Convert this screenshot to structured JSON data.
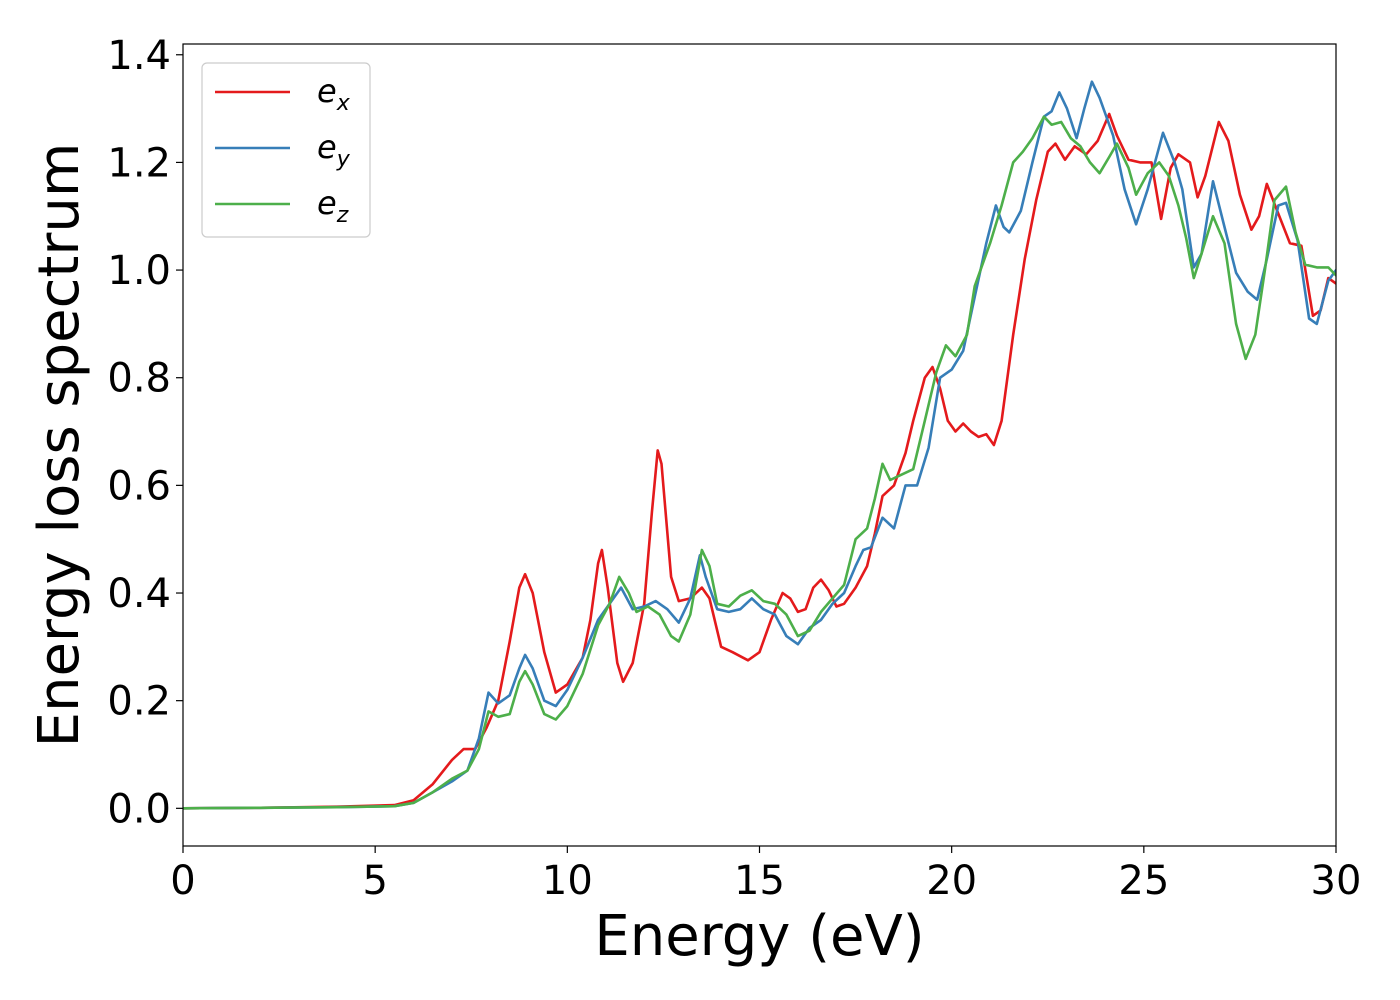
{
  "chart_data": {
    "type": "line",
    "title": "",
    "xlabel": "Energy (eV)",
    "ylabel": "Energy loss spectrum",
    "xlim": [
      0,
      30
    ],
    "ylim": [
      -0.07,
      1.42
    ],
    "xticks": [
      0,
      5,
      10,
      15,
      20,
      25,
      30
    ],
    "xtick_labels": [
      "0",
      "5",
      "10",
      "15",
      "20",
      "25",
      "30"
    ],
    "yticks": [
      0.0,
      0.2,
      0.4,
      0.6,
      0.8,
      1.0,
      1.2,
      1.4
    ],
    "ytick_labels": [
      "0.0",
      "0.2",
      "0.4",
      "0.6",
      "0.8",
      "1.0",
      "1.2",
      "1.4"
    ],
    "grid": false,
    "legend_position": "top-left",
    "series": [
      {
        "name": "e_x",
        "label_base": "e",
        "label_sub": "x",
        "color": "#e41a1c",
        "points": [
          [
            0,
            0.0
          ],
          [
            2,
            0.001
          ],
          [
            4,
            0.003
          ],
          [
            5.5,
            0.006
          ],
          [
            6.0,
            0.015
          ],
          [
            6.5,
            0.045
          ],
          [
            7.0,
            0.09
          ],
          [
            7.3,
            0.11
          ],
          [
            7.6,
            0.11
          ],
          [
            7.9,
            0.15
          ],
          [
            8.2,
            0.2
          ],
          [
            8.5,
            0.31
          ],
          [
            8.75,
            0.41
          ],
          [
            8.9,
            0.435
          ],
          [
            9.1,
            0.4
          ],
          [
            9.4,
            0.29
          ],
          [
            9.7,
            0.215
          ],
          [
            10.0,
            0.23
          ],
          [
            10.4,
            0.28
          ],
          [
            10.6,
            0.35
          ],
          [
            10.8,
            0.455
          ],
          [
            10.9,
            0.48
          ],
          [
            11.05,
            0.41
          ],
          [
            11.3,
            0.27
          ],
          [
            11.45,
            0.235
          ],
          [
            11.7,
            0.27
          ],
          [
            12.0,
            0.38
          ],
          [
            12.2,
            0.55
          ],
          [
            12.35,
            0.665
          ],
          [
            12.45,
            0.64
          ],
          [
            12.7,
            0.43
          ],
          [
            12.9,
            0.385
          ],
          [
            13.2,
            0.39
          ],
          [
            13.5,
            0.41
          ],
          [
            13.7,
            0.39
          ],
          [
            14.0,
            0.3
          ],
          [
            14.3,
            0.29
          ],
          [
            14.7,
            0.275
          ],
          [
            15.0,
            0.29
          ],
          [
            15.3,
            0.35
          ],
          [
            15.6,
            0.4
          ],
          [
            15.8,
            0.39
          ],
          [
            16.0,
            0.365
          ],
          [
            16.2,
            0.37
          ],
          [
            16.4,
            0.41
          ],
          [
            16.6,
            0.425
          ],
          [
            16.8,
            0.405
          ],
          [
            17.0,
            0.375
          ],
          [
            17.2,
            0.38
          ],
          [
            17.5,
            0.41
          ],
          [
            17.8,
            0.45
          ],
          [
            18.0,
            0.51
          ],
          [
            18.2,
            0.58
          ],
          [
            18.5,
            0.6
          ],
          [
            18.8,
            0.66
          ],
          [
            19.0,
            0.72
          ],
          [
            19.3,
            0.8
          ],
          [
            19.5,
            0.82
          ],
          [
            19.7,
            0.78
          ],
          [
            19.9,
            0.72
          ],
          [
            20.1,
            0.7
          ],
          [
            20.3,
            0.715
          ],
          [
            20.5,
            0.7
          ],
          [
            20.7,
            0.69
          ],
          [
            20.9,
            0.695
          ],
          [
            21.1,
            0.675
          ],
          [
            21.3,
            0.72
          ],
          [
            21.6,
            0.88
          ],
          [
            21.9,
            1.02
          ],
          [
            22.2,
            1.13
          ],
          [
            22.5,
            1.22
          ],
          [
            22.7,
            1.235
          ],
          [
            22.95,
            1.205
          ],
          [
            23.2,
            1.23
          ],
          [
            23.5,
            1.215
          ],
          [
            23.8,
            1.24
          ],
          [
            24.1,
            1.29
          ],
          [
            24.3,
            1.25
          ],
          [
            24.6,
            1.205
          ],
          [
            24.9,
            1.2
          ],
          [
            25.2,
            1.2
          ],
          [
            25.45,
            1.095
          ],
          [
            25.7,
            1.19
          ],
          [
            25.9,
            1.215
          ],
          [
            26.2,
            1.2
          ],
          [
            26.4,
            1.135
          ],
          [
            26.6,
            1.175
          ],
          [
            26.95,
            1.275
          ],
          [
            27.2,
            1.24
          ],
          [
            27.5,
            1.14
          ],
          [
            27.8,
            1.075
          ],
          [
            28.0,
            1.1
          ],
          [
            28.2,
            1.16
          ],
          [
            28.5,
            1.105
          ],
          [
            28.8,
            1.05
          ],
          [
            29.1,
            1.045
          ],
          [
            29.4,
            0.915
          ],
          [
            29.6,
            0.925
          ],
          [
            29.8,
            0.985
          ],
          [
            30.0,
            0.975
          ]
        ]
      },
      {
        "name": "e_y",
        "label_base": "e",
        "label_sub": "y",
        "color": "#377eb8",
        "points": [
          [
            0,
            0.0
          ],
          [
            2,
            0.001
          ],
          [
            4,
            0.002
          ],
          [
            5.5,
            0.004
          ],
          [
            6.0,
            0.01
          ],
          [
            6.5,
            0.03
          ],
          [
            7.0,
            0.05
          ],
          [
            7.4,
            0.07
          ],
          [
            7.7,
            0.13
          ],
          [
            7.95,
            0.215
          ],
          [
            8.2,
            0.195
          ],
          [
            8.5,
            0.21
          ],
          [
            8.75,
            0.26
          ],
          [
            8.9,
            0.285
          ],
          [
            9.1,
            0.26
          ],
          [
            9.4,
            0.2
          ],
          [
            9.7,
            0.19
          ],
          [
            10.0,
            0.22
          ],
          [
            10.4,
            0.28
          ],
          [
            10.8,
            0.35
          ],
          [
            11.1,
            0.38
          ],
          [
            11.4,
            0.41
          ],
          [
            11.7,
            0.37
          ],
          [
            12.0,
            0.375
          ],
          [
            12.3,
            0.385
          ],
          [
            12.6,
            0.37
          ],
          [
            12.9,
            0.345
          ],
          [
            13.2,
            0.39
          ],
          [
            13.45,
            0.47
          ],
          [
            13.6,
            0.43
          ],
          [
            13.9,
            0.37
          ],
          [
            14.2,
            0.365
          ],
          [
            14.5,
            0.37
          ],
          [
            14.8,
            0.39
          ],
          [
            15.1,
            0.37
          ],
          [
            15.4,
            0.36
          ],
          [
            15.7,
            0.32
          ],
          [
            16.0,
            0.305
          ],
          [
            16.3,
            0.335
          ],
          [
            16.6,
            0.35
          ],
          [
            16.9,
            0.38
          ],
          [
            17.2,
            0.4
          ],
          [
            17.5,
            0.45
          ],
          [
            17.7,
            0.48
          ],
          [
            17.9,
            0.485
          ],
          [
            18.2,
            0.54
          ],
          [
            18.5,
            0.52
          ],
          [
            18.8,
            0.6
          ],
          [
            19.1,
            0.6
          ],
          [
            19.4,
            0.67
          ],
          [
            19.7,
            0.8
          ],
          [
            20.0,
            0.815
          ],
          [
            20.3,
            0.85
          ],
          [
            20.6,
            0.95
          ],
          [
            20.9,
            1.05
          ],
          [
            21.15,
            1.12
          ],
          [
            21.35,
            1.08
          ],
          [
            21.5,
            1.07
          ],
          [
            21.8,
            1.11
          ],
          [
            22.1,
            1.2
          ],
          [
            22.4,
            1.285
          ],
          [
            22.6,
            1.295
          ],
          [
            22.8,
            1.33
          ],
          [
            23.0,
            1.3
          ],
          [
            23.25,
            1.245
          ],
          [
            23.45,
            1.3
          ],
          [
            23.65,
            1.35
          ],
          [
            23.85,
            1.32
          ],
          [
            24.2,
            1.25
          ],
          [
            24.5,
            1.15
          ],
          [
            24.8,
            1.085
          ],
          [
            25.1,
            1.15
          ],
          [
            25.5,
            1.255
          ],
          [
            25.8,
            1.2
          ],
          [
            26.0,
            1.15
          ],
          [
            26.3,
            1.005
          ],
          [
            26.5,
            1.03
          ],
          [
            26.8,
            1.165
          ],
          [
            27.1,
            1.08
          ],
          [
            27.4,
            0.995
          ],
          [
            27.7,
            0.96
          ],
          [
            27.95,
            0.945
          ],
          [
            28.2,
            1.02
          ],
          [
            28.5,
            1.12
          ],
          [
            28.7,
            1.125
          ],
          [
            29.0,
            1.055
          ],
          [
            29.3,
            0.91
          ],
          [
            29.5,
            0.9
          ],
          [
            29.8,
            0.98
          ],
          [
            30.0,
            1.0
          ]
        ]
      },
      {
        "name": "e_z",
        "label_base": "e",
        "label_sub": "z",
        "color": "#4daf4a",
        "points": [
          [
            0,
            0.0
          ],
          [
            2,
            0.001
          ],
          [
            4,
            0.002
          ],
          [
            5.5,
            0.004
          ],
          [
            6.0,
            0.01
          ],
          [
            6.5,
            0.03
          ],
          [
            7.0,
            0.055
          ],
          [
            7.4,
            0.07
          ],
          [
            7.7,
            0.11
          ],
          [
            7.95,
            0.18
          ],
          [
            8.2,
            0.17
          ],
          [
            8.5,
            0.175
          ],
          [
            8.75,
            0.235
          ],
          [
            8.9,
            0.255
          ],
          [
            9.1,
            0.23
          ],
          [
            9.4,
            0.175
          ],
          [
            9.7,
            0.165
          ],
          [
            10.0,
            0.19
          ],
          [
            10.4,
            0.25
          ],
          [
            10.8,
            0.34
          ],
          [
            11.1,
            0.38
          ],
          [
            11.35,
            0.43
          ],
          [
            11.6,
            0.4
          ],
          [
            11.8,
            0.365
          ],
          [
            12.1,
            0.375
          ],
          [
            12.4,
            0.36
          ],
          [
            12.7,
            0.32
          ],
          [
            12.9,
            0.31
          ],
          [
            13.2,
            0.36
          ],
          [
            13.5,
            0.48
          ],
          [
            13.7,
            0.45
          ],
          [
            13.9,
            0.38
          ],
          [
            14.2,
            0.375
          ],
          [
            14.5,
            0.395
          ],
          [
            14.8,
            0.405
          ],
          [
            15.1,
            0.385
          ],
          [
            15.4,
            0.38
          ],
          [
            15.7,
            0.36
          ],
          [
            16.0,
            0.32
          ],
          [
            16.3,
            0.33
          ],
          [
            16.6,
            0.365
          ],
          [
            16.9,
            0.39
          ],
          [
            17.2,
            0.415
          ],
          [
            17.5,
            0.5
          ],
          [
            17.8,
            0.52
          ],
          [
            18.0,
            0.575
          ],
          [
            18.2,
            0.64
          ],
          [
            18.4,
            0.61
          ],
          [
            18.7,
            0.62
          ],
          [
            19.0,
            0.63
          ],
          [
            19.3,
            0.72
          ],
          [
            19.6,
            0.81
          ],
          [
            19.85,
            0.86
          ],
          [
            20.1,
            0.84
          ],
          [
            20.4,
            0.88
          ],
          [
            20.6,
            0.97
          ],
          [
            21.0,
            1.05
          ],
          [
            21.3,
            1.12
          ],
          [
            21.6,
            1.2
          ],
          [
            21.85,
            1.22
          ],
          [
            22.1,
            1.245
          ],
          [
            22.4,
            1.285
          ],
          [
            22.6,
            1.27
          ],
          [
            22.85,
            1.275
          ],
          [
            23.1,
            1.245
          ],
          [
            23.35,
            1.23
          ],
          [
            23.6,
            1.2
          ],
          [
            23.85,
            1.18
          ],
          [
            24.1,
            1.21
          ],
          [
            24.3,
            1.235
          ],
          [
            24.6,
            1.19
          ],
          [
            24.8,
            1.14
          ],
          [
            25.1,
            1.18
          ],
          [
            25.4,
            1.2
          ],
          [
            25.65,
            1.175
          ],
          [
            25.9,
            1.12
          ],
          [
            26.1,
            1.06
          ],
          [
            26.3,
            0.985
          ],
          [
            26.5,
            1.03
          ],
          [
            26.8,
            1.1
          ],
          [
            27.1,
            1.05
          ],
          [
            27.4,
            0.9
          ],
          [
            27.65,
            0.835
          ],
          [
            27.9,
            0.88
          ],
          [
            28.15,
            1.0
          ],
          [
            28.4,
            1.13
          ],
          [
            28.7,
            1.155
          ],
          [
            28.95,
            1.07
          ],
          [
            29.2,
            1.01
          ],
          [
            29.5,
            1.005
          ],
          [
            29.8,
            1.005
          ],
          [
            30.0,
            0.99
          ]
        ]
      }
    ]
  }
}
